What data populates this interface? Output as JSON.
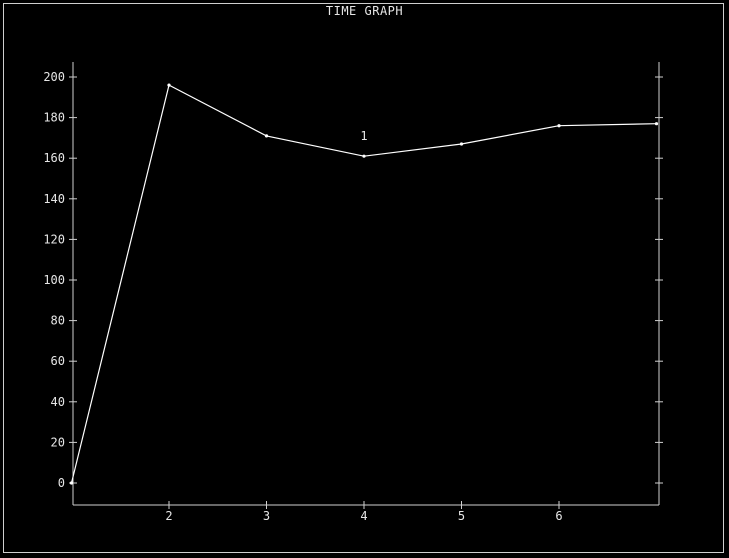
{
  "window": {
    "title": "TIME GRAPH"
  },
  "colors": {
    "background": "#000000",
    "axes": "#cfcfcf",
    "line": "#ffffff",
    "text": "#e6e6e6"
  },
  "chart_data": {
    "type": "line",
    "title": "TIME GRAPH",
    "xlabel": "",
    "ylabel": "",
    "xlim": [
      1,
      7
    ],
    "ylim": [
      0,
      200
    ],
    "x_ticks": [
      2,
      3,
      4,
      5,
      6
    ],
    "y_ticks": [
      0,
      20,
      40,
      60,
      80,
      100,
      120,
      140,
      160,
      180,
      200
    ],
    "grid": false,
    "series": [
      {
        "x": [
          1,
          2,
          3,
          4,
          5,
          6,
          7
        ],
        "values": [
          0,
          196,
          171,
          161,
          167,
          176,
          177
        ]
      }
    ],
    "annotations": [
      {
        "text": "1",
        "x": 4,
        "y": 169
      }
    ]
  }
}
